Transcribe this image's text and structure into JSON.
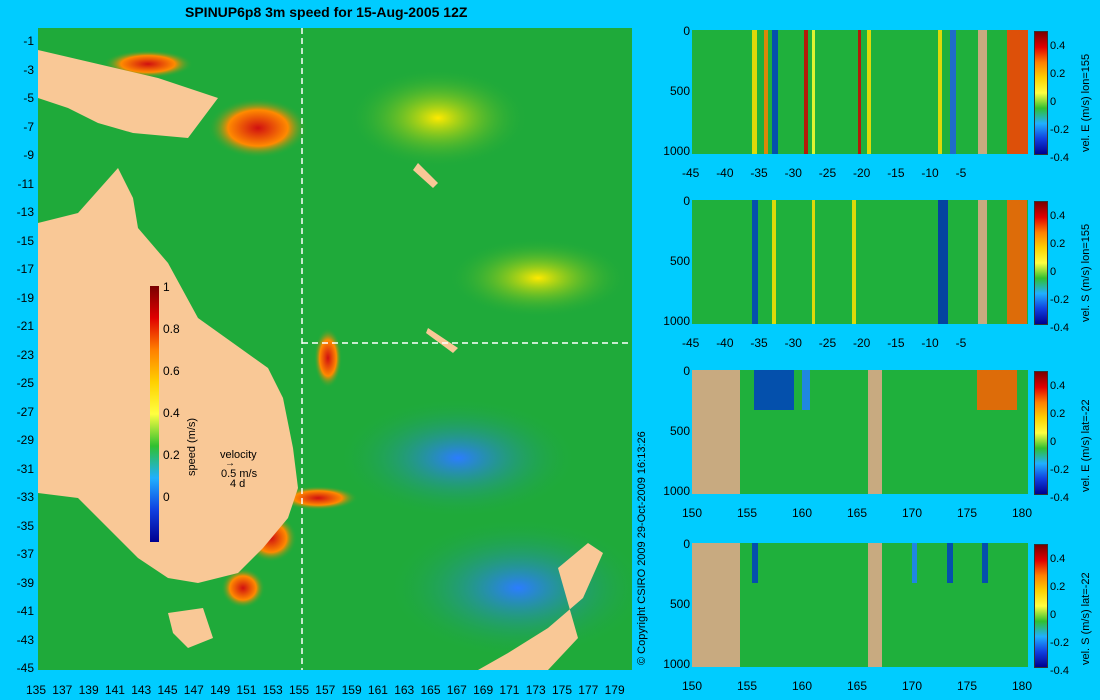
{
  "title": "SPINUP6p8 3m speed for 15-Aug-2005 12Z",
  "copyright": "© Copyright CSIRO 2009   29-Oct-2009 16:13:26",
  "map": {
    "lat_labels": [
      "-1",
      "-3",
      "-5",
      "-7",
      "-9",
      "-11",
      "-13",
      "-15",
      "-17",
      "-19",
      "-21",
      "-23",
      "-25",
      "-27",
      "-29",
      "-31",
      "-33",
      "-35",
      "-37",
      "-39",
      "-41",
      "-43",
      "-45"
    ],
    "lon_labels": [
      "135",
      "137",
      "139",
      "141",
      "143",
      "145",
      "147",
      "149",
      "151",
      "153",
      "155",
      "157",
      "159",
      "161",
      "163",
      "165",
      "167",
      "169",
      "171",
      "173",
      "175",
      "177",
      "179"
    ],
    "colorbar_label": "speed (m/s)",
    "colorbar_ticks": [
      "1",
      "0.8",
      "0.6",
      "0.4",
      "0.2",
      "0"
    ],
    "velocity_key": {
      "title": "velocity",
      "speed": "0.5 m/s",
      "time": "4 d"
    },
    "section_lon": 155,
    "section_lat": -22
  },
  "panels": [
    {
      "label": "vel. E (m/s) lon=155",
      "x_ticks": [
        "-45",
        "-40",
        "-35",
        "-30",
        "-25",
        "-20",
        "-15",
        "-10",
        "-5"
      ],
      "depth_ticks": [
        "0",
        "500",
        "1000"
      ],
      "cbar_ticks": [
        "0.4",
        "0.2",
        "0",
        "-0.2",
        "-0.4"
      ]
    },
    {
      "label": "vel. S (m/s) lon=155",
      "x_ticks": [
        "-45",
        "-40",
        "-35",
        "-30",
        "-25",
        "-20",
        "-15",
        "-10",
        "-5"
      ],
      "depth_ticks": [
        "0",
        "500",
        "1000"
      ],
      "cbar_ticks": [
        "0.4",
        "0.2",
        "0",
        "-0.2",
        "-0.4"
      ]
    },
    {
      "label": "vel. E (m/s) lat=-22",
      "x_ticks": [
        "150",
        "155",
        "160",
        "165",
        "170",
        "175",
        "180"
      ],
      "depth_ticks": [
        "0",
        "500",
        "1000"
      ],
      "cbar_ticks": [
        "0.4",
        "0.2",
        "0",
        "-0.2",
        "-0.4"
      ]
    },
    {
      "label": "vel. S (m/s) lat=-22",
      "x_ticks": [
        "150",
        "155",
        "160",
        "165",
        "170",
        "175",
        "180"
      ],
      "depth_ticks": [
        "0",
        "500",
        "1000"
      ],
      "cbar_ticks": [
        "0.4",
        "0.2",
        "0",
        "-0.2",
        "-0.4"
      ]
    }
  ],
  "colors": {
    "land": "#f9c896",
    "ocean_bg": "#00ccff",
    "section_land": "#c8aa80"
  }
}
